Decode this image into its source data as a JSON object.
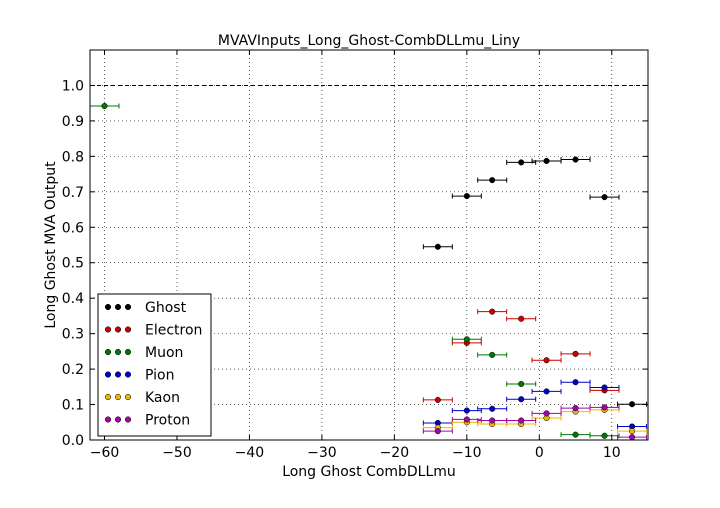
{
  "chart_data": {
    "type": "scatter",
    "title": "MVAVInputs_Long_Ghost-CombDLLmu_Liny",
    "xlabel": "Long Ghost CombDLLmu",
    "ylabel": "Long Ghost MVA Output",
    "xlim": [
      -62,
      15
    ],
    "ylim": [
      0,
      1.1
    ],
    "grid": true,
    "legend_position": "lower-left",
    "x_ticks": [
      -60,
      -50,
      -40,
      -30,
      -20,
      -10,
      0,
      10
    ],
    "x_tick_labels": [
      "−60",
      "−50",
      "−40",
      "−30",
      "−20",
      "−10",
      "0",
      "10"
    ],
    "y_ticks": [
      0.0,
      0.1,
      0.2,
      0.3,
      0.4,
      0.5,
      0.6,
      0.7,
      0.8,
      0.9,
      1.0
    ],
    "y_tick_labels": [
      "0.0",
      "0.1",
      "0.2",
      "0.3",
      "0.4",
      "0.5",
      "0.6",
      "0.7",
      "0.8",
      "0.9",
      "1.0"
    ],
    "reference_line_y": 1.0,
    "series": [
      {
        "name": "Ghost",
        "color": "#000000",
        "points": [
          {
            "x": -14,
            "xerr": 2,
            "y": 0.545
          },
          {
            "x": -10,
            "xerr": 2,
            "y": 0.688
          },
          {
            "x": -6.5,
            "xerr": 2,
            "y": 0.733
          },
          {
            "x": -2.5,
            "xerr": 2,
            "y": 0.783
          },
          {
            "x": 1,
            "xerr": 2,
            "y": 0.787
          },
          {
            "x": 5,
            "xerr": 2,
            "y": 0.791
          },
          {
            "x": 9,
            "xerr": 2,
            "y": 0.685
          },
          {
            "x": 12.8,
            "xerr": 2,
            "y": 0.101
          }
        ]
      },
      {
        "name": "Electron",
        "color": "#cc0000",
        "points": [
          {
            "x": -14,
            "xerr": 2,
            "y": 0.113
          },
          {
            "x": -10,
            "xerr": 2,
            "y": 0.274
          },
          {
            "x": -6.5,
            "xerr": 2,
            "y": 0.362
          },
          {
            "x": -2.5,
            "xerr": 2,
            "y": 0.342
          },
          {
            "x": 1,
            "xerr": 2,
            "y": 0.225
          },
          {
            "x": 5,
            "xerr": 2,
            "y": 0.243
          },
          {
            "x": 9,
            "xerr": 2,
            "y": 0.14
          }
        ]
      },
      {
        "name": "Muon",
        "color": "#007700",
        "points": [
          {
            "x": -60,
            "xerr": 2,
            "y": 0.942
          },
          {
            "x": -10,
            "xerr": 2,
            "y": 0.284
          },
          {
            "x": -6.5,
            "xerr": 2,
            "y": 0.24
          },
          {
            "x": -2.5,
            "xerr": 2,
            "y": 0.158
          },
          {
            "x": 5,
            "xerr": 2,
            "y": 0.015
          },
          {
            "x": 9,
            "xerr": 2,
            "y": 0.012
          }
        ]
      },
      {
        "name": "Pion",
        "color": "#0000cc",
        "points": [
          {
            "x": -14,
            "xerr": 2,
            "y": 0.048
          },
          {
            "x": -10,
            "xerr": 2,
            "y": 0.083
          },
          {
            "x": -6.5,
            "xerr": 2,
            "y": 0.088
          },
          {
            "x": -2.5,
            "xerr": 2,
            "y": 0.115
          },
          {
            "x": 1,
            "xerr": 2,
            "y": 0.137
          },
          {
            "x": 5,
            "xerr": 2,
            "y": 0.163
          },
          {
            "x": 9,
            "xerr": 2,
            "y": 0.148
          },
          {
            "x": 12.8,
            "xerr": 2,
            "y": 0.038
          }
        ]
      },
      {
        "name": "Kaon",
        "color": "#eeb800",
        "points": [
          {
            "x": -14,
            "xerr": 2,
            "y": 0.035
          },
          {
            "x": -10,
            "xerr": 2,
            "y": 0.05
          },
          {
            "x": -6.5,
            "xerr": 2,
            "y": 0.045
          },
          {
            "x": -2.5,
            "xerr": 2,
            "y": 0.045
          },
          {
            "x": 1,
            "xerr": 2,
            "y": 0.062
          },
          {
            "x": 5,
            "xerr": 2,
            "y": 0.08
          },
          {
            "x": 9,
            "xerr": 2,
            "y": 0.085
          },
          {
            "x": 12.8,
            "xerr": 2,
            "y": 0.025
          }
        ]
      },
      {
        "name": "Proton",
        "color": "#aa00aa",
        "points": [
          {
            "x": -14,
            "xerr": 2,
            "y": 0.025
          },
          {
            "x": -10,
            "xerr": 2,
            "y": 0.058
          },
          {
            "x": -6.5,
            "xerr": 2,
            "y": 0.055
          },
          {
            "x": -2.5,
            "xerr": 2,
            "y": 0.055
          },
          {
            "x": 1,
            "xerr": 2,
            "y": 0.075
          },
          {
            "x": 5,
            "xerr": 2,
            "y": 0.09
          },
          {
            "x": 9,
            "xerr": 2,
            "y": 0.092
          },
          {
            "x": 12.8,
            "xerr": 2,
            "y": 0.008
          }
        ]
      }
    ]
  }
}
